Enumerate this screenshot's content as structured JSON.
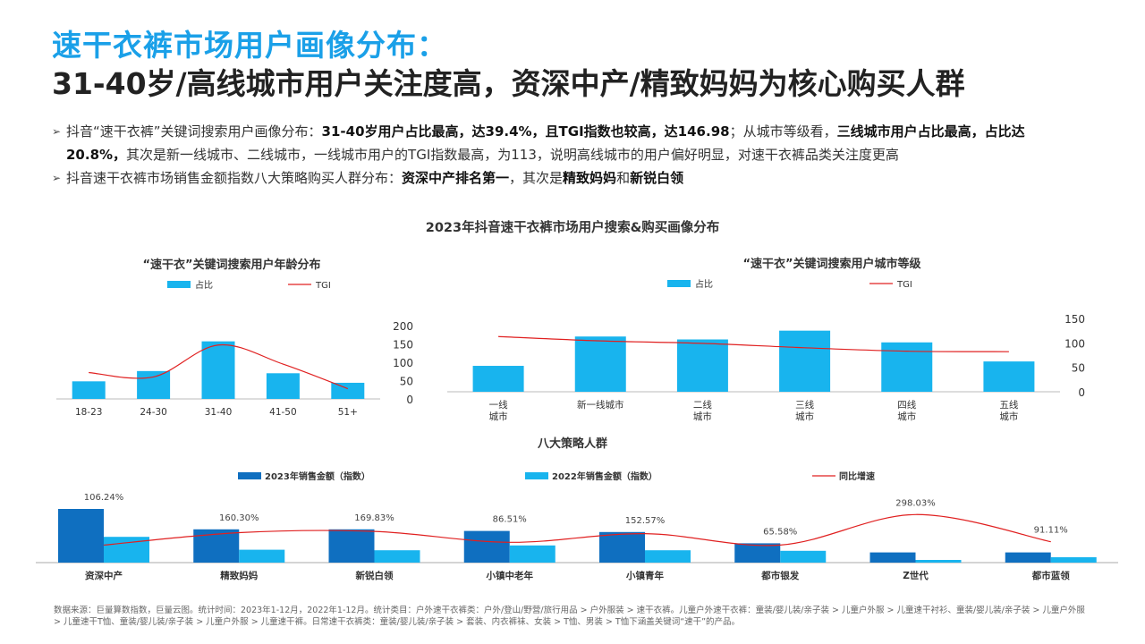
{
  "header": {
    "title_line1": "速干衣裤市场用户画像分布：",
    "title_line2": "31-40岁/高线城市用户关注度高，资深中产/精致妈妈为核心购买人群"
  },
  "bullets": {
    "b1_p1": "抖音“速干衣裤”关键词搜索用户画像分布：",
    "b1_p2": "31-40岁用户占比最高，达39.4%，且TGI指数也较高，达146.98",
    "b1_p3": "；从城市等级看，",
    "b1_p4": "三线城市用户占比最高，占比达20.8%，",
    "b1_p5": "其次是新一线城市、二线城市，一线城市用户的TGI指数最高，为113，说明高线城市的用户偏好明显，对速干衣裤品类关注度更高",
    "b2_p1": "抖音速干衣裤市场销售金额指数八大策略购买人群分布：",
    "b2_p2": "资深中产排名第一",
    "b2_p3": "，其次是",
    "b2_p4": "精致妈妈",
    "b2_p5": "和",
    "b2_p6": "新锐白领"
  },
  "section_title": "2023年抖音速干衣裤市场用户搜索&购买画像分布",
  "colors": {
    "bar_light": "#18b4ee",
    "bar_dark": "#0f6fc0",
    "line_red": "#e02020",
    "title_blue": "#1aa0e8"
  },
  "chart_data": [
    {
      "type": "bar",
      "title": "“速干衣”关键词搜索用户年龄分布",
      "legend": [
        "占比",
        "TGI"
      ],
      "categories": [
        "18-23",
        "24-30",
        "31-40",
        "41-50",
        "51+"
      ],
      "series": [
        {
          "name": "占比",
          "values": [
            48,
            76,
            157,
            70,
            44
          ]
        },
        {
          "name": "TGI",
          "values": [
            72,
            60,
            147,
            95,
            28
          ]
        }
      ],
      "ylim": [
        0,
        200
      ],
      "yticks": [
        "0",
        "50",
        "100",
        "150",
        "200"
      ]
    },
    {
      "type": "bar",
      "title": "“速干衣”关键词搜索用户城市等级",
      "legend": [
        "占比",
        "TGI"
      ],
      "categories": [
        [
          "一线",
          "城市"
        ],
        [
          "新一线城市"
        ],
        [
          "二线",
          "城市"
        ],
        [
          "三线",
          "城市"
        ],
        [
          "四线",
          "城市"
        ],
        [
          "五线",
          "城市"
        ]
      ],
      "series": [
        {
          "name": "占比",
          "values": [
            53,
            113,
            107,
            125,
            101,
            62
          ]
        },
        {
          "name": "TGI",
          "values": [
            113,
            104,
            99,
            90,
            83,
            82
          ]
        }
      ],
      "ylim": [
        0,
        150
      ],
      "yticks": [
        "0",
        "50",
        "100",
        "150"
      ]
    },
    {
      "type": "bar",
      "title": "八大策略人群",
      "legend": [
        "2023年销售金额（指数）",
        "2022年销售金额（指数）",
        "同比增速"
      ],
      "categories": [
        "资深中产",
        "精致妈妈",
        "新锐白领",
        "小镇中老年",
        "小镇青年",
        "都市银发",
        "Z世代",
        "都市蓝领"
      ],
      "series": [
        {
          "name": "2023年销售金额（指数）",
          "values": [
            100,
            62,
            62,
            59,
            57,
            36,
            19,
            19
          ]
        },
        {
          "name": "2022年销售金额（指数）",
          "values": [
            48,
            24,
            23,
            32,
            23,
            22,
            5,
            10
          ]
        },
        {
          "name": "同比增速",
          "values": [
            106.24,
            160.3,
            169.83,
            86.51,
            152.57,
            65.58,
            298.03,
            91.11
          ]
        }
      ],
      "growth_labels": [
        "106.24%",
        "160.30%",
        "169.83%",
        "86.51%",
        "152.57%",
        "65.58%",
        "298.03%",
        "91.11%"
      ]
    }
  ],
  "footnote": "数据来源：巨量算数指数，巨量云图。统计时间：2023年1-12月，2022年1-12月。统计类目：户外速干衣裤类：户外/登山/野营/旅行用品 > 户外服装 > 速干衣裤。儿童户外速干衣裤：童装/婴儿装/亲子装 > 儿童户外服 > 儿童速干衬衫、童装/婴儿装/亲子装 > 儿童户外服 > 儿童速干T恤、童装/婴儿装/亲子装 > 儿童户外服 > 儿童速干裤。日常速干衣裤类：童装/婴儿装/亲子装 > 套装、内衣裤袜、女装 > T恤、男装 > T恤下涵盖关键词“速干”的产品。"
}
